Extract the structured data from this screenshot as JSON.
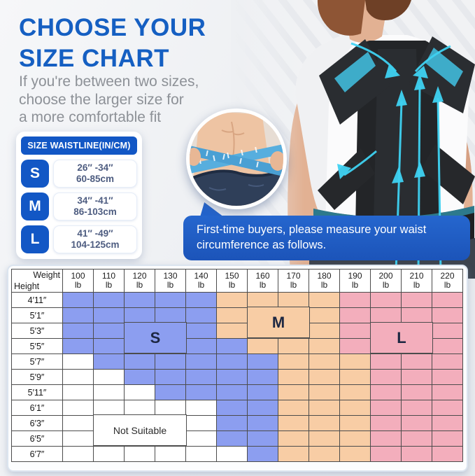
{
  "header": {
    "title_line1": "CHOOSE YOUR",
    "title_line2": "SIZE CHART",
    "subtitle_line1": "If you're between two sizes,",
    "subtitle_line2": "choose the larger size for",
    "subtitle_line3": "a more comfortable fit"
  },
  "waistline_card": {
    "title": "SIZE WAISTLINE(IN/CM)",
    "rows": [
      {
        "size": "S",
        "range_in": "26″ -34″",
        "range_cm": "60-85cm"
      },
      {
        "size": "M",
        "range_in": "34″ -41″",
        "range_cm": "86-103cm"
      },
      {
        "size": "L",
        "range_in": "41″ -49″",
        "range_cm": "104-125cm"
      }
    ]
  },
  "callout": {
    "line1": "First-time buyers, please measure your waist",
    "line2": "circumference as follows."
  },
  "chart_data": {
    "type": "table",
    "title": "Size by height and weight",
    "corner_top": "Weight",
    "corner_bottom": "Height",
    "weight_columns": [
      "100 lb",
      "110 lb",
      "120 lb",
      "130 lb",
      "140 lb",
      "150 lb",
      "160 lb",
      "170 lb",
      "180 lb",
      "190 lb",
      "200 lb",
      "210 lb",
      "220 lb"
    ],
    "height_rows": [
      "4′11″",
      "5′1″",
      "5′3″",
      "5′5″",
      "5′7″",
      "5′9″",
      "5′11″",
      "6′1″",
      "6′3″",
      "6′5″",
      "6′7″"
    ],
    "cells": [
      [
        "S",
        "S",
        "S",
        "S",
        "S",
        "M",
        "M",
        "M",
        "M",
        "L",
        "L",
        "L",
        "L"
      ],
      [
        "S",
        "S",
        "S",
        "S",
        "S",
        "M",
        "M",
        "M",
        "M",
        "L",
        "L",
        "L",
        "L"
      ],
      [
        "S",
        "S",
        "S",
        "S",
        "S",
        "M",
        "M",
        "M",
        "M",
        "L",
        "L",
        "L",
        "L"
      ],
      [
        "S",
        "S",
        "S",
        "S",
        "S",
        "S",
        "M",
        "M",
        "M",
        "L",
        "L",
        "L",
        "L"
      ],
      [
        "N",
        "S",
        "S",
        "S",
        "S",
        "S",
        "S",
        "M",
        "M",
        "M",
        "L",
        "L",
        "L"
      ],
      [
        "N",
        "N",
        "S",
        "S",
        "S",
        "S",
        "S",
        "M",
        "M",
        "M",
        "L",
        "L",
        "L"
      ],
      [
        "N",
        "N",
        "N",
        "S",
        "S",
        "S",
        "S",
        "M",
        "M",
        "M",
        "L",
        "L",
        "L"
      ],
      [
        "N",
        "N",
        "N",
        "N",
        "N",
        "S",
        "S",
        "M",
        "M",
        "M",
        "L",
        "L",
        "L"
      ],
      [
        "N",
        "N",
        "N",
        "N",
        "N",
        "S",
        "S",
        "M",
        "M",
        "M",
        "L",
        "L",
        "L"
      ],
      [
        "N",
        "N",
        "N",
        "N",
        "N",
        "S",
        "S",
        "M",
        "M",
        "M",
        "L",
        "L",
        "L"
      ],
      [
        "N",
        "N",
        "N",
        "N",
        "N",
        "N",
        "S",
        "M",
        "M",
        "M",
        "L",
        "L",
        "L"
      ]
    ],
    "region_labels": {
      "S": "S",
      "M": "M",
      "L": "L",
      "N": "Not Suitable"
    },
    "colors": {
      "S": "#8c9ef0",
      "M": "#f8cda5",
      "L": "#f3aebc",
      "N": "#ffffff"
    },
    "layout": {
      "grid": "on",
      "legend_position": "in-chart"
    }
  }
}
